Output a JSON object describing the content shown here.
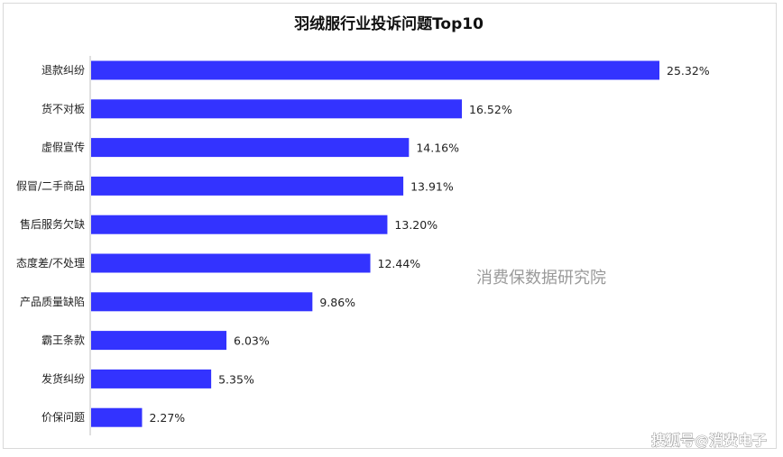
{
  "chart_data": {
    "type": "bar",
    "orientation": "horizontal",
    "title": "羽绒服行业投诉问题Top10",
    "categories": [
      "退款纠纷",
      "货不对板",
      "虚假宣传",
      "假冒/二手商品",
      "售后服务欠缺",
      "态度差/不处理",
      "产品质量缺陷",
      "霸王条款",
      "发货纠纷",
      "价保问题"
    ],
    "values": [
      25.32,
      16.52,
      14.16,
      13.91,
      13.2,
      12.44,
      9.86,
      6.03,
      5.35,
      2.27
    ],
    "value_labels": [
      "25.32%",
      "16.52%",
      "14.16%",
      "13.91%",
      "13.20%",
      "12.44%",
      "9.86%",
      "6.03%",
      "5.35%",
      "2.27%"
    ],
    "xlim": [
      0,
      25.32
    ],
    "grid": false,
    "bar_color": "#3333ff",
    "xlabel": "",
    "ylabel": ""
  },
  "watermark": "消费保数据研究院",
  "source": "搜狐号@消费电子"
}
